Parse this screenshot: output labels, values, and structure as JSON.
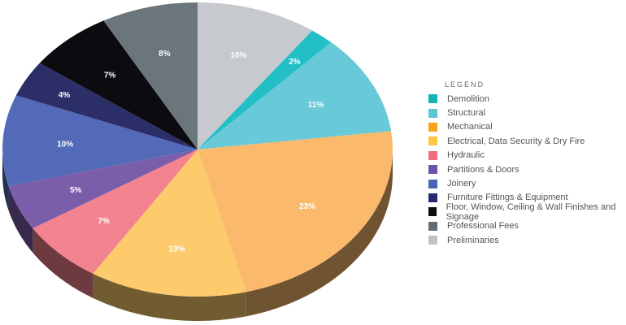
{
  "chart_data": {
    "type": "pie",
    "style": "3d",
    "legend_title": "LEGEND",
    "legend_position": "right",
    "start": "top, clockwise, beginning with Preliminaries",
    "slices": [
      {
        "name": "Demolition",
        "value": 2,
        "label": "2%",
        "color": "#22bfc6",
        "legend_color": "#14b3b6"
      },
      {
        "name": "Structural",
        "value": 11,
        "label": "11%",
        "color": "#68cad8",
        "legend_color": "#5cc6d3"
      },
      {
        "name": "Mechanical",
        "value": 23,
        "label": "23%",
        "color": "#fbb96c",
        "legend_color": "#f8a21e"
      },
      {
        "name": "Electrical, Data Security & Dry Fire",
        "value": 13,
        "label": "13%",
        "color": "#fdcb6b",
        "legend_color": "#fdc640"
      },
      {
        "name": "Hydraulic",
        "value": 7,
        "label": "7%",
        "color": "#f3838f",
        "legend_color": "#ef6d7d"
      },
      {
        "name": "Partitions & Doors",
        "value": 5,
        "label": "5%",
        "color": "#7b5ea9",
        "legend_color": "#6e54a8"
      },
      {
        "name": "Joinery",
        "value": 10,
        "label": "10%",
        "color": "#536ab8",
        "legend_color": "#4c63b3"
      },
      {
        "name": "Furniture Fittings & Equipment",
        "value": 4,
        "label": "4%",
        "color": "#2c2e68",
        "legend_color": "#262b6e"
      },
      {
        "name": "Floor, Window, Ceiling & Wall Finishes and Signage",
        "value": 7,
        "label": "7%",
        "color": "#0b0b10",
        "legend_color": "#0d0d14"
      },
      {
        "name": "Professional Fees",
        "value": 8,
        "label": "8%",
        "color": "#6b757c",
        "legend_color": "#646c73"
      },
      {
        "name": "Preliminaries",
        "value": 10,
        "label": "10%",
        "color": "#c6c9cd",
        "legend_color": "#bfc2c6"
      }
    ]
  }
}
